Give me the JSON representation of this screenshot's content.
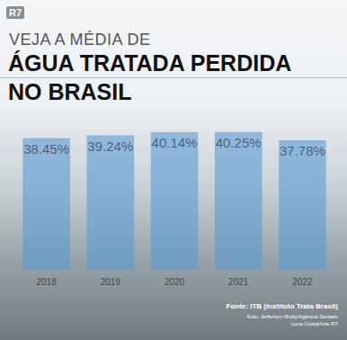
{
  "chart_data": {
    "type": "bar",
    "logo": "R7",
    "title": [
      "VEJA A MÉDIA DE",
      "ÁGUA TRATADA PERDIDA",
      "NO BRASIL"
    ],
    "source": "Fonte: ITB (Instituto Trata Brasil)",
    "credits": [
      "Foto: Jefferson Rudy/Agência Senado",
      "Luca Costa/Arte R7"
    ],
    "categories": [
      "2018",
      "2019",
      "2020",
      "2021",
      "2022"
    ],
    "values": [
      38.45,
      39.24,
      40.14,
      40.25,
      37.78
    ],
    "value_labels": [
      "38.45%",
      "39.24%",
      "40.14%",
      "40.25%",
      "37.78%"
    ],
    "color": "#5b9bd5",
    "ylim": [
      0,
      42
    ],
    "data_labels": true,
    "tick_labels": "x",
    "grid": false
  }
}
